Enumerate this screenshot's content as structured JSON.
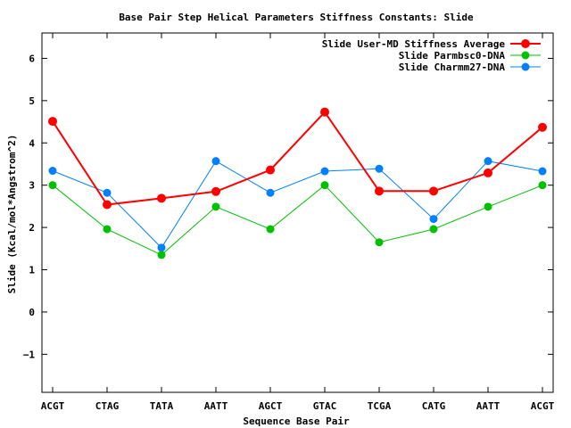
{
  "chart_data": {
    "type": "line",
    "title": "Base Pair Step Helical Parameters Stiffness Constants: Slide",
    "xlabel": "Sequence Base Pair",
    "ylabel": "Slide (Kcal/mol*Angstrom^2)",
    "categories": [
      "ACGT",
      "CTAG",
      "TATA",
      "AATT",
      "AGCT",
      "GTAC",
      "TCGA",
      "CATG",
      "AATT",
      "ACGT"
    ],
    "ylim": [
      -1.9,
      6.6
    ],
    "yticks": [
      -1,
      0,
      1,
      2,
      3,
      4,
      5,
      6
    ],
    "legend_position": "top-right",
    "grid": false,
    "series": [
      {
        "name": "Slide User-MD Stiffness Average",
        "color": "#ff0000",
        "values": [
          4.51,
          2.54,
          2.69,
          2.85,
          3.36,
          4.73,
          2.86,
          2.86,
          3.29,
          4.37
        ]
      },
      {
        "name": "Slide Parmbsc0-DNA",
        "color": "#00c000",
        "values": [
          3.0,
          1.96,
          1.35,
          2.49,
          1.96,
          3.0,
          1.65,
          1.96,
          2.49,
          3.0
        ]
      },
      {
        "name": "Slide Charmm27-DNA",
        "color": "#0080ff",
        "values": [
          3.34,
          2.82,
          1.52,
          3.57,
          2.82,
          3.33,
          3.39,
          2.2,
          3.57,
          3.33
        ]
      }
    ]
  }
}
